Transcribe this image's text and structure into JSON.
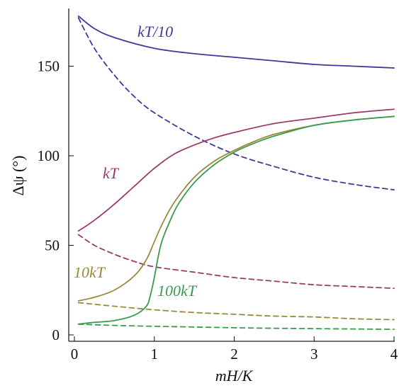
{
  "chart_data": {
    "type": "line",
    "title": "",
    "xlabel": "mH/K",
    "ylabel": "Δψ (°)",
    "xlim": [
      0,
      4
    ],
    "ylim": [
      0,
      180
    ],
    "x_ticks": [
      0,
      1,
      2,
      3,
      4
    ],
    "y_ticks": [
      0,
      50,
      100,
      150
    ],
    "grid": false,
    "legend": "none",
    "series": [
      {
        "name": "kT/10",
        "color": "#3a3a9a",
        "style": "solid",
        "x": [
          0.05,
          0.25,
          0.5,
          1.0,
          1.5,
          2.0,
          2.5,
          3.0,
          3.5,
          4.0
        ],
        "y": [
          178,
          171,
          166,
          160,
          157,
          155,
          153,
          151,
          150,
          149
        ]
      },
      {
        "name": "",
        "color": "#3a3a9a",
        "style": "dashed",
        "x": [
          0.05,
          0.25,
          0.5,
          0.75,
          1.0,
          1.5,
          2.0,
          2.5,
          3.0,
          3.5,
          4.0
        ],
        "y": [
          177,
          160,
          145,
          133,
          124,
          111,
          101,
          94,
          88,
          84,
          81
        ]
      },
      {
        "name": "kT",
        "color": "#9b3a6e",
        "style": "solid",
        "x": [
          0.05,
          0.25,
          0.5,
          0.75,
          1.0,
          1.25,
          1.5,
          1.75,
          2.0,
          2.5,
          3.0,
          3.5,
          4.0
        ],
        "y": [
          58,
          64,
          73,
          83,
          93,
          101,
          106,
          110,
          113,
          118,
          121,
          124,
          126
        ]
      },
      {
        "name": "",
        "color": "#9b3a6e",
        "style": "dashed",
        "x": [
          0.05,
          0.25,
          0.5,
          0.75,
          1.0,
          1.5,
          2.0,
          2.5,
          3.0,
          3.5,
          4.0
        ],
        "y": [
          56,
          50,
          45,
          41,
          38,
          35,
          32,
          30,
          28,
          27,
          26
        ]
      },
      {
        "name": "10kT",
        "color": "#9a8a3a",
        "style": "solid",
        "x": [
          0.05,
          0.25,
          0.5,
          0.75,
          0.9,
          1.0,
          1.1,
          1.25,
          1.5,
          1.75,
          2.0,
          2.25,
          2.5,
          3.0,
          3.5,
          4.0
        ],
        "y": [
          19,
          21,
          25,
          33,
          42,
          52,
          62,
          74,
          88,
          97,
          103,
          108,
          112,
          117,
          120,
          122
        ]
      },
      {
        "name": "",
        "color": "#9a8a3a",
        "style": "dashed",
        "x": [
          0.05,
          0.5,
          1.0,
          1.5,
          2.0,
          2.5,
          3.0,
          3.5,
          4.0
        ],
        "y": [
          18,
          16,
          14,
          12.5,
          11.5,
          10.5,
          10,
          9,
          8.5
        ]
      },
      {
        "name": "100kT",
        "color": "#3a9a4e",
        "style": "solid",
        "x": [
          0.05,
          0.25,
          0.5,
          0.75,
          0.9,
          0.95,
          1.0,
          1.05,
          1.1,
          1.2,
          1.3,
          1.5,
          1.75,
          2.0,
          2.25,
          2.5,
          3.0,
          3.5,
          4.0
        ],
        "y": [
          6,
          7,
          8,
          11,
          16,
          22,
          32,
          44,
          53,
          64,
          73,
          85,
          95,
          102,
          107,
          111,
          117,
          120,
          122
        ]
      },
      {
        "name": "",
        "color": "#3a9a4e",
        "style": "dashed",
        "x": [
          0.05,
          0.5,
          1.0,
          1.5,
          2.0,
          2.5,
          3.0,
          3.5,
          4.0
        ],
        "y": [
          6,
          5.3,
          4.8,
          4.4,
          4.0,
          3.7,
          3.5,
          3.3,
          3.1
        ]
      }
    ],
    "annotations": [
      {
        "text": "kT/10",
        "color": "#3a3a9a",
        "series": 0
      },
      {
        "text": "kT",
        "color": "#9b3a6e",
        "series": 2
      },
      {
        "text": "10kT",
        "color": "#9a8a3a",
        "series": 4
      },
      {
        "text": "100kT",
        "color": "#3a9a4e",
        "series": 6
      }
    ]
  }
}
